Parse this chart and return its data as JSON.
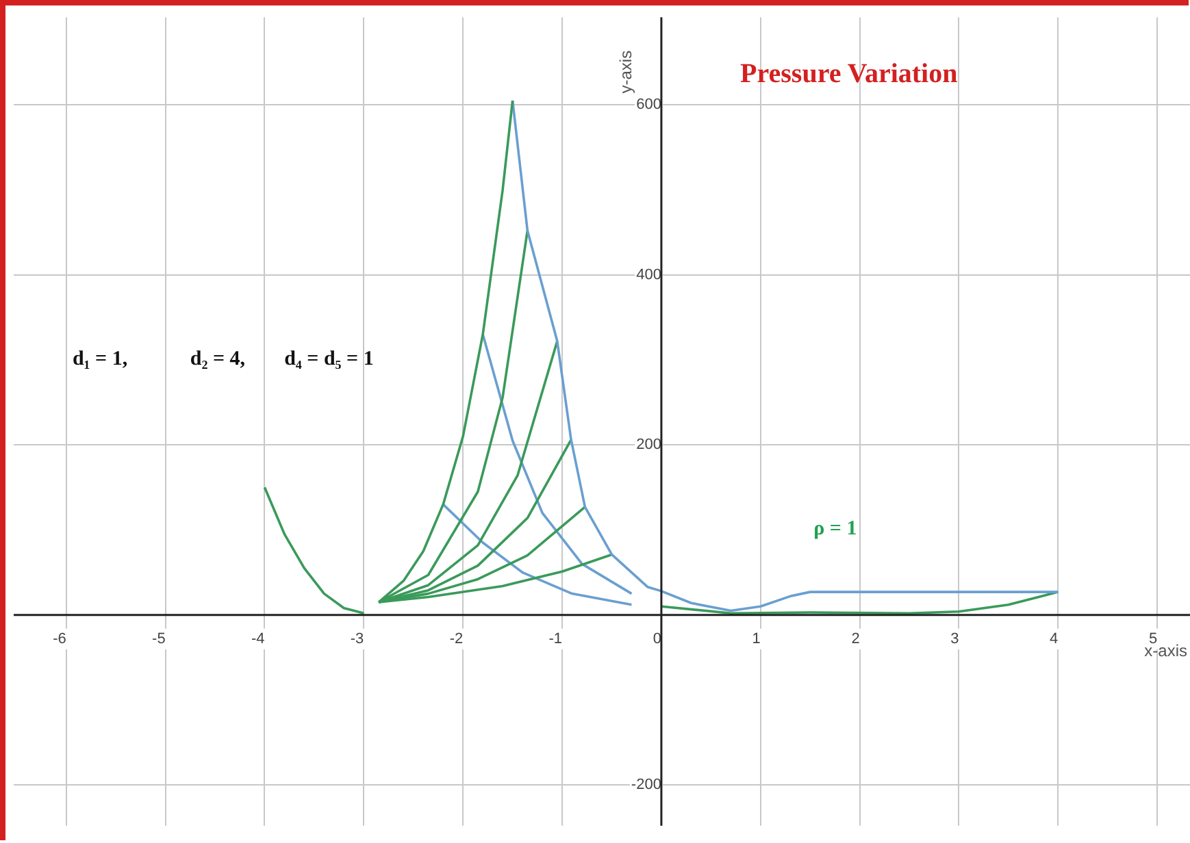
{
  "chart_data": {
    "type": "line",
    "title": "Pressure Variation",
    "xlabel": "x-axis",
    "ylabel": "y-axis",
    "annotations": [
      "d₁ = 1,",
      "d₂ = 4,",
      "d₄ = d₅ = 1",
      "ρ = 1"
    ],
    "xlim": [
      -6.53,
      5.33
    ],
    "ylim": [
      -248,
      703
    ],
    "xticks": [
      -6,
      -5,
      -4,
      -3,
      -2,
      -1,
      0,
      1,
      2,
      3,
      4,
      5
    ],
    "yticks": [
      -200,
      {
        "value": 0,
        "label": null
      },
      200,
      400,
      600
    ],
    "grid": true,
    "legend": false,
    "marker": "none",
    "line_style": "solid",
    "series": [
      {
        "color": "#3a9a5a",
        "x": [
          -4,
          -3.8,
          -3.6,
          -3.4,
          -3.2,
          -3
        ],
        "values": [
          150,
          95,
          55,
          25,
          8,
          2
        ]
      },
      {
        "color": "#3a9a5a",
        "x": [
          -2.85,
          -2.6,
          -2.4,
          -2.2,
          -2,
          -1.8,
          -1.6,
          -1.5
        ],
        "values": [
          15,
          40,
          75,
          130,
          210,
          330,
          500,
          605
        ]
      },
      {
        "color": "#6a9fd0",
        "x": [
          -1.5,
          -1.35,
          -1.05,
          -0.91,
          -0.77,
          -0.5,
          -0.14,
          0,
          0.3,
          0.7,
          1,
          1.3,
          1.5,
          4
        ],
        "values": [
          605,
          452,
          322,
          206,
          127,
          71,
          33,
          28,
          14,
          5,
          10,
          22,
          27,
          27
        ]
      },
      {
        "color": "#3a9a5a",
        "x": [
          -2.85,
          -2.35,
          -1.85,
          -1.6,
          -1.35
        ],
        "values": [
          15,
          47,
          145,
          256,
          452
        ]
      },
      {
        "color": "#3a9a5a",
        "x": [
          -2.85,
          -2.35,
          -1.85,
          -1.45,
          -1.05
        ],
        "values": [
          15,
          35,
          82,
          164,
          322
        ]
      },
      {
        "color": "#3a9a5a",
        "x": [
          -2.85,
          -2.35,
          -1.85,
          -1.35,
          -0.91
        ],
        "values": [
          15,
          29,
          58,
          114,
          206
        ]
      },
      {
        "color": "#3a9a5a",
        "x": [
          -2.85,
          -2.35,
          -1.85,
          -1.35,
          -0.77
        ],
        "values": [
          15,
          25,
          42,
          70,
          127
        ]
      },
      {
        "color": "#3a9a5a",
        "x": [
          -2.85,
          -2.35,
          -1.6,
          -1,
          -0.5
        ],
        "values": [
          15,
          21,
          34,
          51,
          71
        ]
      },
      {
        "color": "#6a9fd0",
        "x": [
          -1.8,
          -1.5,
          -1.2,
          -0.8,
          -0.3
        ],
        "values": [
          330,
          205,
          120,
          60,
          25
        ]
      },
      {
        "color": "#6a9fd0",
        "x": [
          -2.2,
          -1.8,
          -1.4,
          -0.9,
          -0.3
        ],
        "values": [
          130,
          85,
          50,
          25,
          12
        ]
      },
      {
        "color": "#3a9a5a",
        "x": [
          0,
          0.7,
          1.5,
          2.5,
          3,
          3.5,
          4
        ],
        "values": [
          10,
          2,
          3,
          2,
          4,
          12,
          27
        ]
      }
    ]
  }
}
